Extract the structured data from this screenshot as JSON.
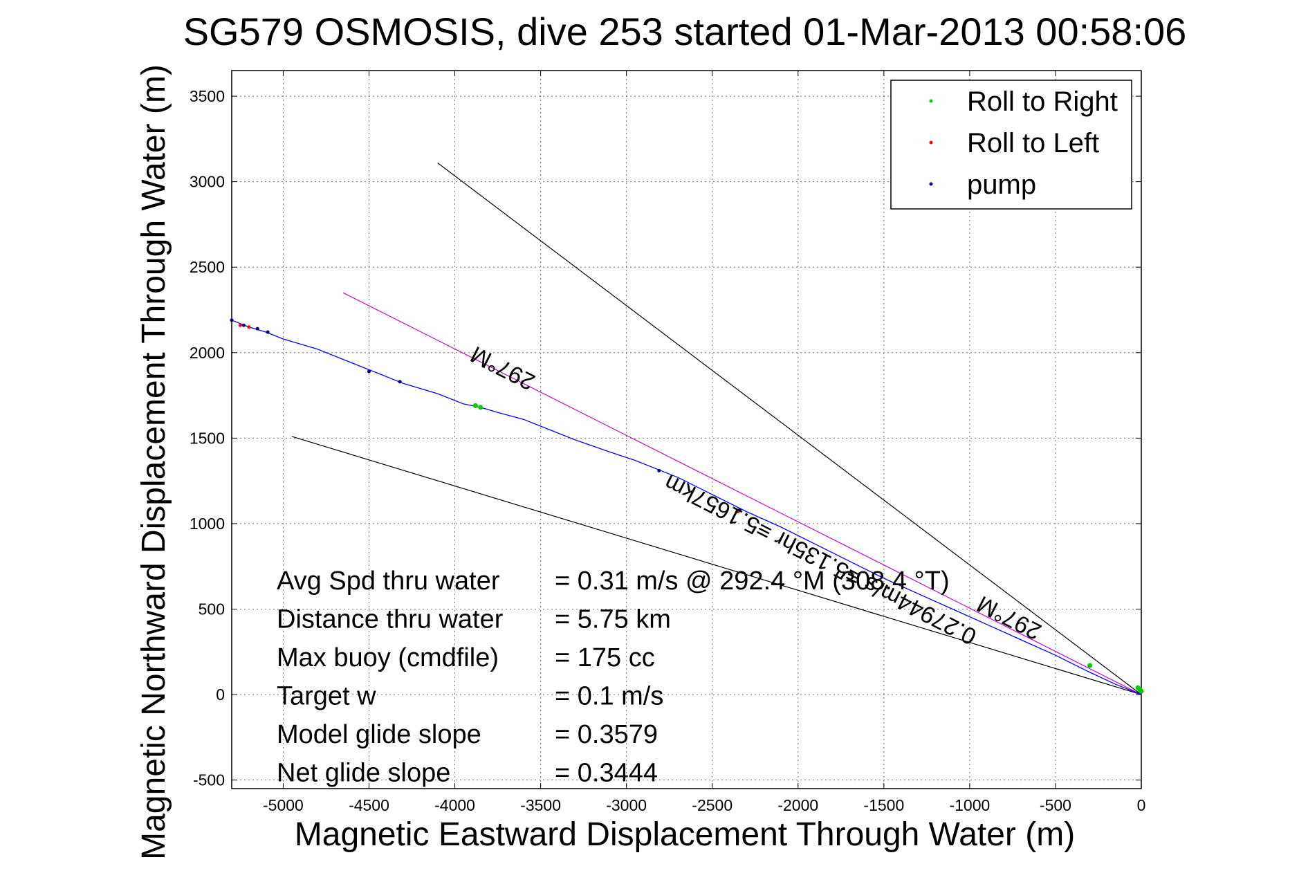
{
  "chart_data": {
    "type": "line",
    "title": "SG579 OSMOSIS, dive 253 started 01-Mar-2013 00:58:06",
    "xlabel": "Magnetic Eastward Displacement Through Water (m)",
    "ylabel": "Magnetic Northward Displacement Through Water (m)",
    "xlim": [
      -5300,
      0
    ],
    "ylim": [
      -550,
      3650
    ],
    "xticks": [
      -5000,
      -4500,
      -4000,
      -3500,
      -3000,
      -2500,
      -2000,
      -1500,
      -1000,
      -500,
      0
    ],
    "yticks": [
      -500,
      0,
      500,
      1000,
      1500,
      2000,
      2500,
      3000,
      3500
    ],
    "xtick_labels": [
      "-5000",
      "-4500",
      "-4000",
      "-3500",
      "-3000",
      "-2500",
      "-2000",
      "-1500",
      "-1000",
      "-500",
      "0"
    ],
    "ytick_labels": [
      "-500",
      "0",
      "500",
      "1000",
      "1500",
      "2000",
      "2500",
      "3000",
      "3500"
    ],
    "grid": true,
    "legend_position": "top-right",
    "legend": [
      {
        "label": "Roll to Right",
        "color": "#00cc00"
      },
      {
        "label": "Roll to Left",
        "color": "#ff0000"
      },
      {
        "label": "pump",
        "color": "#000080"
      }
    ],
    "track": {
      "color": "#0000ff",
      "x": [
        0,
        -50,
        -150,
        -300,
        -500,
        -700,
        -900,
        -1100,
        -1300,
        -1500,
        -1700,
        -1900,
        -2100,
        -2300,
        -2500,
        -2700,
        -2800,
        -2950,
        -3100,
        -3300,
        -3450,
        -3600,
        -3750,
        -3850,
        -3950,
        -4100,
        -4300,
        -4450,
        -4600,
        -4800,
        -5000,
        -5100,
        -5200,
        -5300
      ],
      "y": [
        0,
        20,
        60,
        130,
        230,
        320,
        410,
        500,
        590,
        680,
        780,
        880,
        980,
        1070,
        1170,
        1270,
        1310,
        1370,
        1420,
        1490,
        1550,
        1610,
        1650,
        1680,
        1700,
        1760,
        1820,
        1880,
        1940,
        2020,
        2080,
        2120,
        2150,
        2190
      ]
    },
    "heading_line": {
      "color": "#cc00cc",
      "x": [
        0,
        -4650
      ],
      "y": [
        0,
        2350
      ]
    },
    "envelope_lines": {
      "color": "#000000",
      "upper": {
        "x": [
          0,
          -4100
        ],
        "y": [
          0,
          3110
        ]
      },
      "lower": {
        "x": [
          0,
          -4950
        ],
        "y": [
          0,
          1510
        ]
      }
    },
    "roll_right_points": {
      "x": [
        0,
        -10,
        -20,
        -300,
        -3850,
        -3880
      ],
      "y": [
        20,
        30,
        40,
        170,
        1680,
        1690
      ]
    },
    "roll_left_points": {
      "x": [
        -2350,
        -5250,
        -5200
      ],
      "y": [
        1070,
        2160,
        2150
      ]
    },
    "pump_points": {
      "x": [
        -5300,
        -5230,
        -5150,
        -5090,
        -4500,
        -4320,
        -2810,
        -2340
      ],
      "y": [
        2190,
        2160,
        2140,
        2120,
        1890,
        1830,
        1310,
        1080
      ]
    },
    "annotations": [
      {
        "text": "297°M",
        "x": -3700,
        "y": 1950,
        "angle": 207
      },
      {
        "text": "297°M",
        "x": -750,
        "y": 490,
        "angle": 207
      },
      {
        "text": "0.27944m/s ≡5.135hr ≡5.1657km",
        "x": -1850,
        "y": 830,
        "angle": 207
      }
    ],
    "stats": [
      {
        "label": "Avg Spd thru water",
        "value": "=  0.31 m/s @ 292.4 °M (308.4 °T)"
      },
      {
        "label": "Distance thru water",
        "value": "=  5.75 km"
      },
      {
        "label": "Max buoy (cmdfile)",
        "value": "= 175 cc"
      },
      {
        "label": "Target w",
        "value": "= 0.1 m/s"
      },
      {
        "label": "Model glide slope",
        "value": "= 0.3579"
      },
      {
        "label": "Net glide slope",
        "value": "= 0.3444"
      }
    ]
  }
}
